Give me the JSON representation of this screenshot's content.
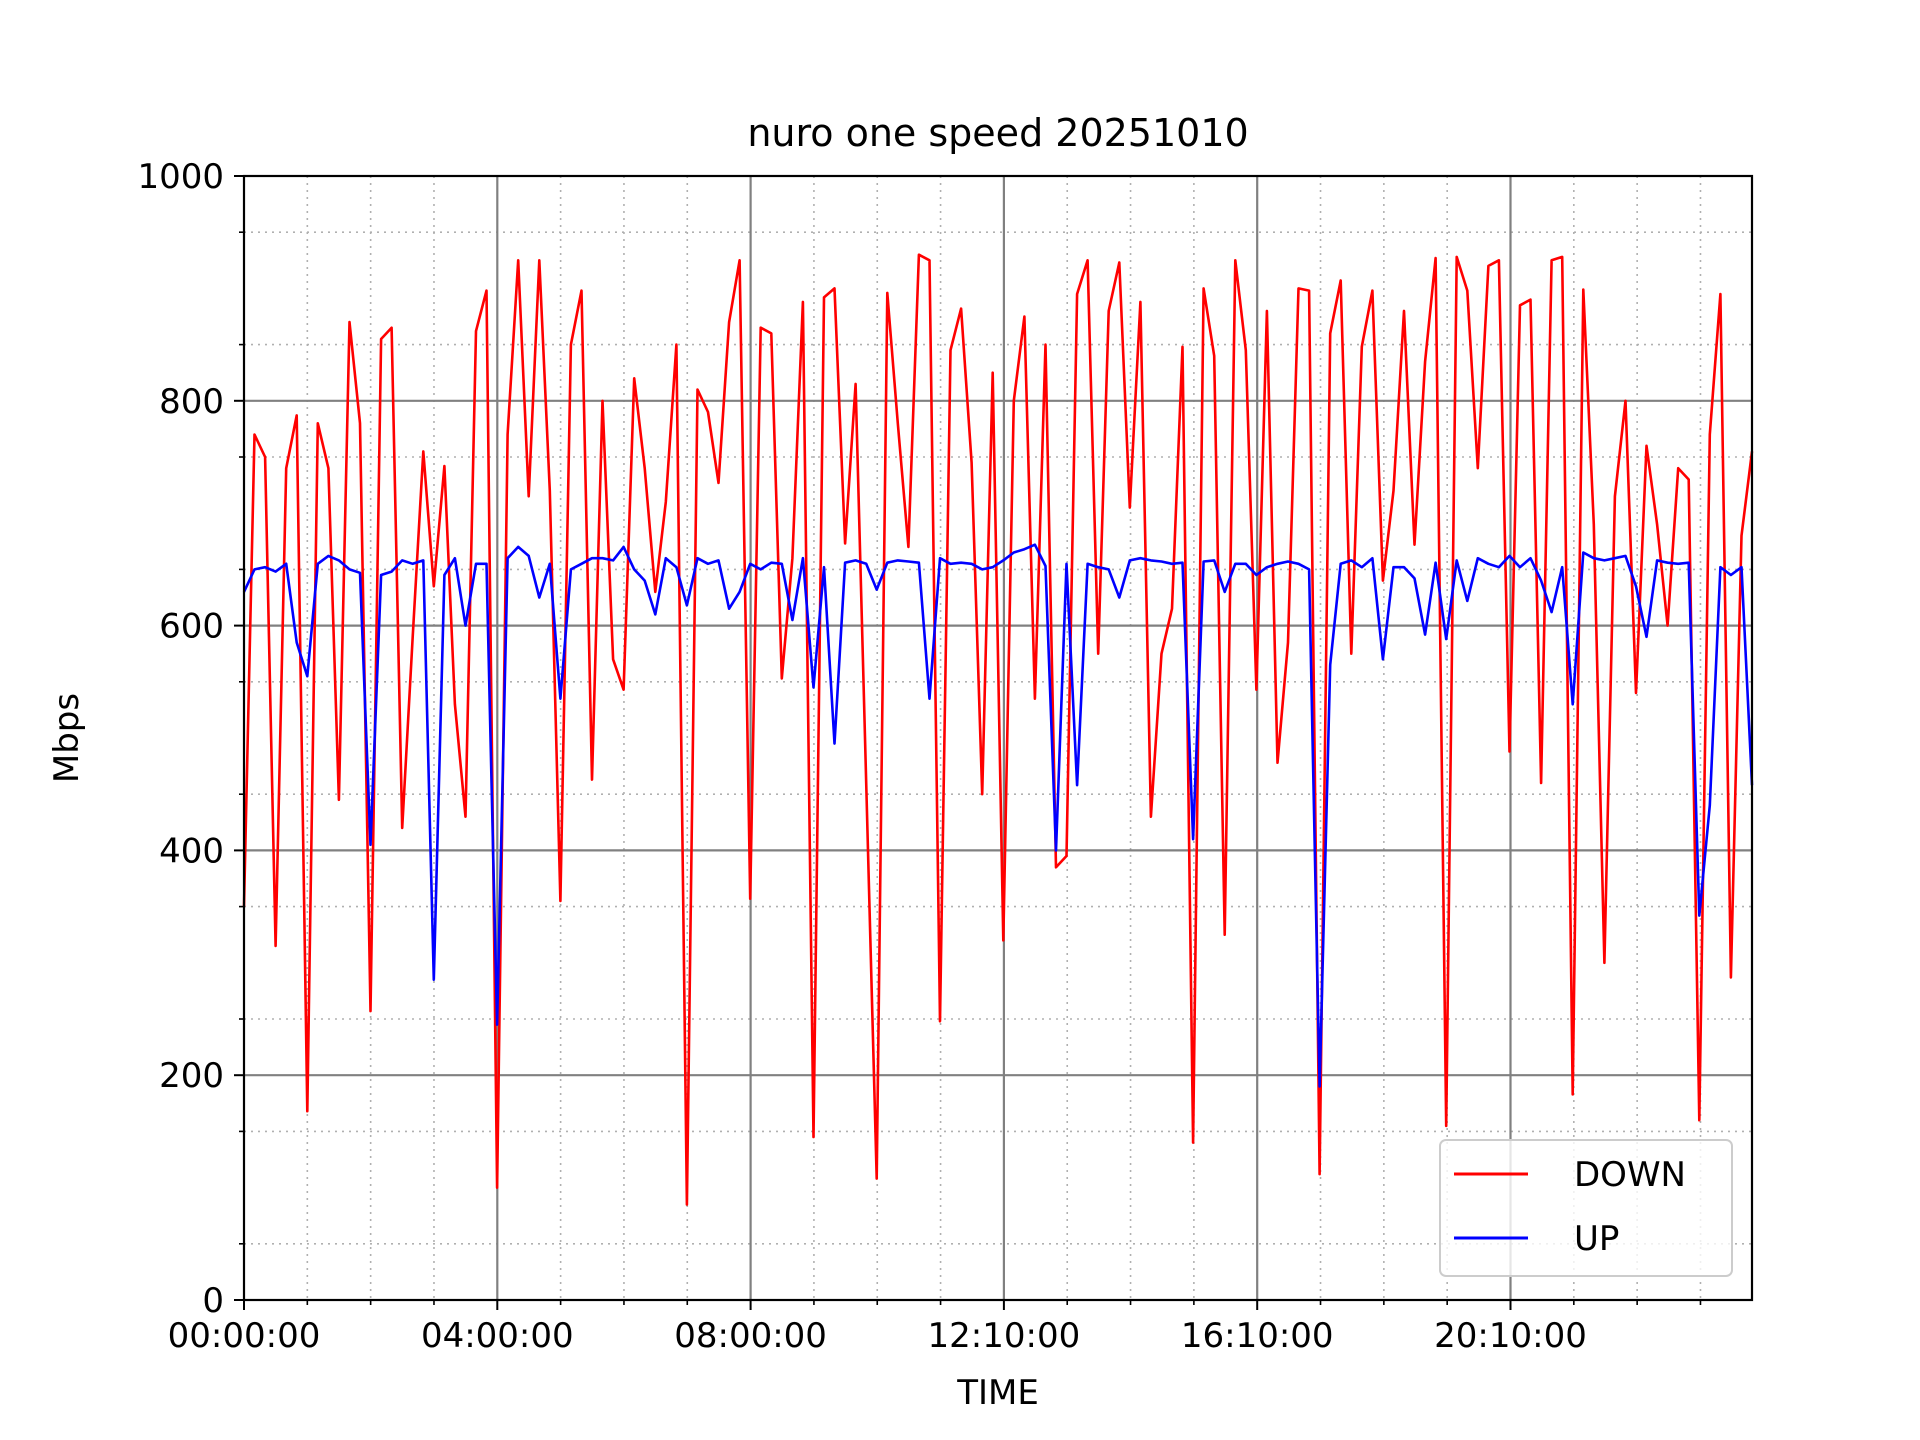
{
  "chart_data": {
    "type": "line",
    "title": "nuro one speed 20251010",
    "xlabel": "TIME",
    "ylabel": "Mbps",
    "ylim": [
      0,
      1000
    ],
    "yticks": [
      0,
      200,
      400,
      600,
      800,
      1000
    ],
    "xtick_labels": [
      "00:00:00",
      "04:00:00",
      "08:00:00",
      "12:10:00",
      "16:10:00",
      "20:10:00"
    ],
    "grid": true,
    "legend": "bottom-right",
    "series": [
      {
        "name": "DOWN",
        "color": "#ff0000",
        "values": [
          350,
          770,
          750,
          315,
          740,
          787,
          168,
          780,
          740,
          445,
          870,
          780,
          257,
          855,
          865,
          420,
          590,
          755,
          635,
          742,
          530,
          430,
          862,
          898,
          100,
          770,
          925,
          715,
          925,
          720,
          355,
          850,
          898,
          463,
          800,
          570,
          543,
          820,
          740,
          630,
          710,
          850,
          85,
          810,
          790,
          727,
          870,
          925,
          357,
          865,
          860,
          553,
          660,
          888,
          145,
          892,
          900,
          673,
          815,
          460,
          108,
          896,
          780,
          670,
          930,
          925,
          248,
          845,
          882,
          745,
          450,
          825,
          320,
          800,
          875,
          535,
          850,
          385,
          395,
          895,
          925,
          575,
          880,
          923,
          705,
          888,
          430,
          575,
          615,
          848,
          140,
          900,
          840,
          325,
          925,
          845,
          543,
          880,
          478,
          585,
          900,
          898,
          112,
          860,
          907,
          575,
          848,
          898,
          640,
          720,
          880,
          672,
          835,
          927,
          155,
          928,
          898,
          740,
          920,
          925,
          488,
          885,
          890,
          460,
          925,
          928,
          183,
          899,
          690,
          300,
          715,
          800,
          540,
          760,
          690,
          600,
          740,
          730,
          160,
          770,
          895,
          287,
          680,
          755
        ]
      },
      {
        "name": "UP",
        "color": "#0000ff",
        "values": [
          630,
          650,
          652,
          648,
          655,
          585,
          555,
          655,
          662,
          658,
          650,
          647,
          405,
          645,
          648,
          658,
          655,
          658,
          285,
          645,
          660,
          600,
          655,
          655,
          245,
          660,
          670,
          662,
          625,
          655,
          535,
          650,
          655,
          660,
          660,
          658,
          670,
          650,
          640,
          610,
          660,
          652,
          618,
          660,
          655,
          658,
          615,
          630,
          655,
          650,
          656,
          655,
          605,
          660,
          545,
          652,
          495,
          656,
          658,
          655,
          632,
          656,
          658,
          657,
          656,
          535,
          660,
          655,
          656,
          655,
          650,
          652,
          658,
          665,
          668,
          672,
          653,
          400,
          655,
          458,
          655,
          652,
          650,
          625,
          658,
          660,
          658,
          657,
          655,
          656,
          410,
          657,
          658,
          630,
          655,
          655,
          645,
          652,
          655,
          657,
          655,
          650,
          190,
          565,
          655,
          658,
          652,
          660,
          570,
          652,
          652,
          642,
          592,
          656,
          588,
          658,
          622,
          660,
          655,
          652,
          662,
          652,
          660,
          640,
          612,
          652,
          530,
          665,
          660,
          658,
          660,
          662,
          635,
          590,
          658,
          656,
          655,
          656,
          342,
          440,
          652,
          645,
          652,
          458
        ]
      }
    ]
  }
}
